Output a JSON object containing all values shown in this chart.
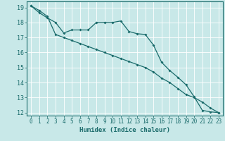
{
  "xlabel": "Humidex (Indice chaleur)",
  "bg_color": "#c8e8e8",
  "grid_color": "#ffffff",
  "line_color": "#1a6b6b",
  "xlim": [
    -0.5,
    23.5
  ],
  "ylim": [
    11.8,
    19.4
  ],
  "yticks": [
    12,
    13,
    14,
    15,
    16,
    17,
    18,
    19
  ],
  "xticks": [
    0,
    1,
    2,
    3,
    4,
    5,
    6,
    7,
    8,
    9,
    10,
    11,
    12,
    13,
    14,
    15,
    16,
    17,
    18,
    19,
    20,
    21,
    22,
    23
  ],
  "line1_x": [
    0,
    1,
    2,
    3,
    4,
    5,
    6,
    7,
    8,
    9,
    10,
    11,
    12,
    13,
    14,
    15,
    16,
    17,
    18,
    19,
    20,
    21,
    22,
    23
  ],
  "line1_y": [
    19.1,
    18.65,
    18.3,
    18.0,
    17.3,
    17.5,
    17.5,
    17.5,
    18.0,
    18.0,
    18.0,
    18.1,
    17.4,
    17.25,
    17.2,
    16.5,
    15.35,
    14.8,
    14.35,
    13.85,
    13.05,
    12.15,
    12.05,
    12.0
  ],
  "line2_x": [
    0,
    1,
    2,
    3,
    4,
    5,
    6,
    7,
    8,
    9,
    10,
    11,
    12,
    13,
    14,
    15,
    16,
    17,
    18,
    19,
    20,
    21,
    22,
    23
  ],
  "line2_y": [
    19.1,
    18.8,
    18.4,
    17.2,
    17.0,
    16.8,
    16.6,
    16.4,
    16.2,
    16.0,
    15.8,
    15.6,
    15.4,
    15.2,
    15.0,
    14.7,
    14.3,
    14.0,
    13.6,
    13.2,
    13.0,
    12.7,
    12.3,
    12.0
  ]
}
